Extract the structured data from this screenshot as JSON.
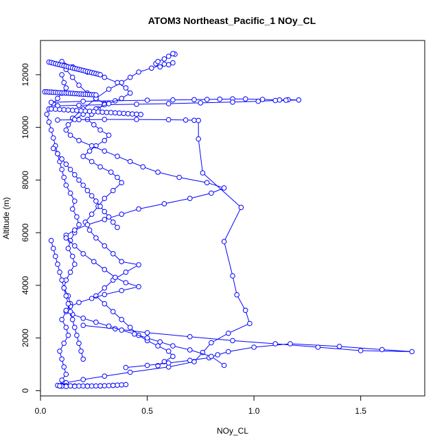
{
  "chart_data": {
    "type": "line",
    "title": "ATOM3 Northeast_Pacific_1 NOy_CL",
    "xlabel": "NOy_CL",
    "ylabel": "Altitude (m)",
    "xlim": [
      0,
      1.8
    ],
    "ylim": [
      -200,
      13300
    ],
    "x_ticks": [
      0.0,
      0.5,
      1.0,
      1.5
    ],
    "x_tick_labels": [
      "0.0",
      "0.5",
      "1.0",
      "1.5"
    ],
    "y_ticks": [
      0,
      2000,
      4000,
      6000,
      8000,
      10000,
      12000
    ],
    "y_tick_labels": [
      "0",
      "2000",
      "4000",
      "6000",
      "8000",
      "10000",
      "12000"
    ],
    "grid": false,
    "marker": "open-circle",
    "color": "#0000ff",
    "series": [
      {
        "x": [
          0.09,
          0.1,
          0.12,
          0.11,
          0.1,
          0.09,
          0.11,
          0.13,
          0.12,
          0.1,
          0.12,
          0.14,
          0.13,
          0.11,
          0.12,
          0.14,
          0.16,
          0.15,
          0.13,
          0.14,
          0.16,
          0.18,
          0.17,
          0.15,
          0.16,
          0.14,
          0.12,
          0.11,
          0.1,
          0.09,
          0.08,
          0.07,
          0.06,
          0.05,
          0.04,
          0.03,
          0.04,
          0.06,
          0.08,
          0.1,
          0.12,
          0.11,
          0.1
        ],
        "y": [
          180,
          400,
          620,
          900,
          1200,
          1500,
          1800,
          2100,
          2400,
          2700,
          3000,
          3300,
          3600,
          3900,
          4200,
          4500,
          4800,
          5100,
          5400,
          5700,
          6000,
          6300,
          6600,
          6900,
          7200,
          7500,
          7800,
          8100,
          8400,
          8700,
          9000,
          9300,
          9600,
          9900,
          10200,
          10500,
          10700,
          10900,
          11100,
          11300,
          11500,
          11700,
          12000
        ]
      },
      {
        "x": [
          0.1,
          0.12,
          0.15,
          0.18,
          0.22,
          0.26,
          0.3,
          0.27,
          0.24,
          0.22,
          0.25,
          0.28,
          0.32,
          0.3,
          0.26,
          0.23,
          0.2,
          0.24,
          0.28,
          0.33,
          0.36,
          0.38,
          0.34,
          0.3,
          0.27,
          0.24,
          0.21,
          0.23,
          0.26,
          0.3,
          0.34,
          0.38,
          0.46,
          0.4,
          0.34,
          0.3,
          0.26,
          0.3,
          0.34,
          0.38,
          0.42,
          0.46,
          0.5,
          0.55,
          0.6,
          0.62,
          0.58,
          0.55
        ],
        "y": [
          12450,
          12200,
          11900,
          11600,
          11300,
          11100,
          10900,
          10700,
          10500,
          10300,
          10100,
          9900,
          9700,
          9500,
          9300,
          9100,
          8900,
          8700,
          8500,
          8300,
          8100,
          7900,
          7600,
          7300,
          7000,
          6700,
          6400,
          6100,
          5800,
          5500,
          5200,
          4900,
          4780,
          4500,
          4200,
          3900,
          3600,
          3300,
          3000,
          2700,
          2400,
          2100,
          1900,
          1700,
          1500,
          1300,
          1100,
          950
        ]
      },
      {
        "x": [
          0.15,
          0.2,
          0.26,
          0.32,
          0.38,
          0.42,
          0.46,
          0.52,
          0.58,
          0.62,
          0.6,
          0.56,
          0.54,
          0.55,
          0.58,
          0.6,
          0.63,
          0.62
        ],
        "y": [
          10350,
          10700,
          11100,
          11450,
          11700,
          11900,
          12100,
          12250,
          12400,
          12450,
          12380,
          12300,
          12420,
          12500,
          12600,
          12700,
          12780,
          12800
        ]
      },
      {
        "x": [
          0.05,
          0.2,
          0.35,
          0.5,
          0.62,
          0.72,
          0.78,
          0.84,
          0.9,
          0.96,
          1.04,
          1.12,
          1.16,
          1.21,
          1.15,
          1.1,
          1.02,
          0.9,
          0.75,
          0.6,
          0.45,
          0.3,
          0.18,
          0.08
        ],
        "y": [
          10950,
          10990,
          11010,
          11030,
          11040,
          11050,
          11060,
          11070,
          11080,
          11080,
          11060,
          11040,
          11050,
          11040,
          11030,
          11020,
          10990,
          10960,
          10930,
          10900,
          10880,
          10860,
          10840,
          10820
        ]
      },
      {
        "x": [
          0.08,
          0.18,
          0.3,
          0.45,
          0.6,
          0.68,
          0.72,
          0.74,
          0.74,
          0.76,
          0.94,
          0.86,
          0.9,
          0.92,
          0.96,
          0.98,
          0.88,
          0.8,
          0.76,
          0.72,
          0.6,
          0.42,
          0.3,
          0.2,
          0.12,
          0.1
        ],
        "y": [
          10280,
          10290,
          10300,
          10300,
          10290,
          10280,
          10270,
          10260,
          9560,
          8270,
          6960,
          5660,
          4360,
          3640,
          3050,
          2550,
          2180,
          1820,
          1450,
          1100,
          900,
          700,
          550,
          420,
          300,
          200
        ]
      },
      {
        "x": [
          0.2,
          0.35,
          0.5,
          0.7,
          0.9,
          1.1,
          1.3,
          1.5,
          1.74,
          1.6,
          1.4,
          1.17,
          1.0,
          0.88,
          0.83,
          0.79,
          0.7,
          0.6,
          0.5,
          0.4
        ],
        "y": [
          2480,
          2350,
          2200,
          2050,
          1900,
          1780,
          1650,
          1520,
          1480,
          1560,
          1680,
          1780,
          1650,
          1480,
          1360,
          1250,
          1150,
          1050,
          960,
          880
        ]
      },
      {
        "x": [
          0.1,
          0.15,
          0.22,
          0.3,
          0.36,
          0.4,
          0.42,
          0.38,
          0.32,
          0.26,
          0.2,
          0.16,
          0.13,
          0.12,
          0.14,
          0.18,
          0.24,
          0.3,
          0.36,
          0.42,
          0.48,
          0.55,
          0.65,
          0.78,
          0.86,
          0.8,
          0.7,
          0.58,
          0.46,
          0.38,
          0.3,
          0.22,
          0.16,
          0.12
        ],
        "y": [
          12500,
          12300,
          12100,
          11900,
          11700,
          11500,
          11300,
          11100,
          10900,
          10700,
          10500,
          10300,
          10100,
          9900,
          9700,
          9500,
          9300,
          9100,
          8900,
          8700,
          8500,
          8300,
          8100,
          7900,
          7700,
          7500,
          7300,
          7100,
          6900,
          6700,
          6500,
          6300,
          6100,
          5900
        ]
      },
      {
        "x": [
          0.12,
          0.16,
          0.2,
          0.25,
          0.3,
          0.35,
          0.4,
          0.46,
          0.38,
          0.3,
          0.24,
          0.18,
          0.14,
          0.12,
          0.15,
          0.2,
          0.26,
          0.32,
          0.38,
          0.44,
          0.5,
          0.56,
          0.62,
          0.7,
          0.8,
          0.86
        ],
        "y": [
          5800,
          5500,
          5200,
          4900,
          4600,
          4300,
          4100,
          3950,
          3800,
          3650,
          3500,
          3350,
          3200,
          3050,
          2900,
          2750,
          2600,
          2450,
          2300,
          2150,
          2000,
          1850,
          1700,
          1550,
          1300,
          960
        ]
      },
      {
        "x": [
          0.08,
          0.1,
          0.12,
          0.14,
          0.16,
          0.18,
          0.2,
          0.22,
          0.24,
          0.26,
          0.28,
          0.3,
          0.32,
          0.34,
          0.36,
          0.38,
          0.4,
          0.34,
          0.28,
          0.22,
          0.16,
          0.12,
          0.1,
          0.09
        ],
        "y": [
          200,
          190,
          185,
          180,
          178,
          176,
          175,
          175,
          176,
          178,
          180,
          185,
          190,
          200,
          210,
          220,
          230,
          200,
          180,
          170,
          165,
          160,
          170,
          180
        ]
      },
      {
        "x": [
          0.04,
          0.05,
          0.06,
          0.07,
          0.08,
          0.09,
          0.1,
          0.11,
          0.12,
          0.13,
          0.14,
          0.15,
          0.16,
          0.17,
          0.18,
          0.19,
          0.2,
          0.21,
          0.22,
          0.23,
          0.24,
          0.25,
          0.26,
          0.27,
          0.28
        ],
        "y": [
          12480,
          12460,
          12440,
          12420,
          12400,
          12380,
          12360,
          12340,
          12320,
          12300,
          12280,
          12260,
          12240,
          12220,
          12200,
          12180,
          12160,
          12140,
          12120,
          12100,
          12080,
          12060,
          12040,
          12020,
          12000
        ]
      },
      {
        "x": [
          0.02,
          0.03,
          0.04,
          0.05,
          0.06,
          0.07,
          0.08,
          0.09,
          0.1,
          0.11,
          0.12,
          0.13,
          0.14,
          0.15,
          0.16,
          0.17,
          0.18,
          0.19,
          0.2,
          0.21,
          0.22,
          0.23,
          0.24,
          0.25,
          0.26
        ],
        "y": [
          11350,
          11350,
          11340,
          11340,
          11330,
          11330,
          11320,
          11320,
          11310,
          11310,
          11300,
          11300,
          11290,
          11290,
          11280,
          11280,
          11270,
          11270,
          11260,
          11260,
          11250,
          11250,
          11240,
          11240,
          11230
        ]
      },
      {
        "x": [
          0.05,
          0.07,
          0.09,
          0.11,
          0.13,
          0.15,
          0.17,
          0.19,
          0.21,
          0.23,
          0.25,
          0.27,
          0.29,
          0.31,
          0.33,
          0.35,
          0.37,
          0.39,
          0.41,
          0.43,
          0.45,
          0.47
        ],
        "y": [
          10700,
          10690,
          10680,
          10670,
          10660,
          10650,
          10640,
          10630,
          10620,
          10610,
          10600,
          10590,
          10580,
          10570,
          10560,
          10550,
          10540,
          10530,
          10520,
          10510,
          10500,
          10490
        ]
      },
      {
        "x": [
          0.06,
          0.08,
          0.1,
          0.12,
          0.14,
          0.16,
          0.18,
          0.2,
          0.22,
          0.24,
          0.26,
          0.28,
          0.3,
          0.32,
          0.34,
          0.36
        ],
        "y": [
          9200,
          9000,
          8800,
          8600,
          8400,
          8200,
          8000,
          7800,
          7600,
          7400,
          7200,
          7000,
          6800,
          6600,
          6400,
          6200
        ]
      },
      {
        "x": [
          0.05,
          0.06,
          0.07,
          0.08,
          0.09,
          0.1,
          0.11,
          0.12,
          0.13,
          0.14,
          0.15,
          0.16,
          0.17,
          0.18,
          0.19,
          0.2
        ],
        "y": [
          5700,
          5400,
          5100,
          4800,
          4500,
          4200,
          3900,
          3600,
          3300,
          3000,
          2700,
          2400,
          2100,
          1800,
          1500,
          1200
        ]
      }
    ]
  }
}
